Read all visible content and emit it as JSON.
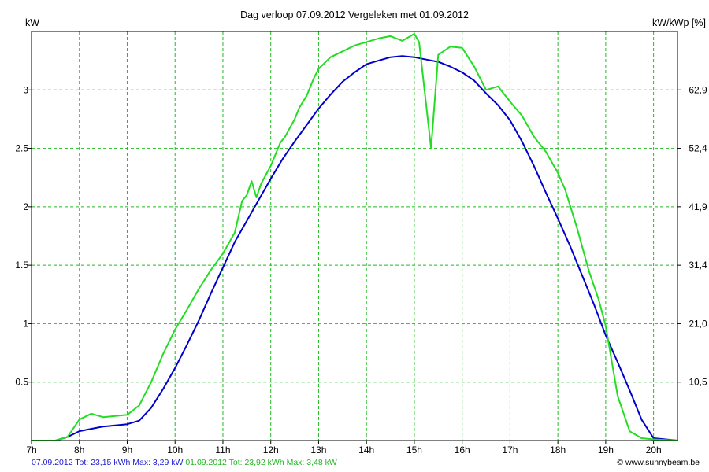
{
  "chart_data": {
    "type": "line",
    "title": "Dag  verloop 07.09.2012   Vergeleken met 01.09.2012",
    "ylabel_left": "kW",
    "ylabel_right": "kW/kWp [%]",
    "xlim": [
      7,
      20.5
    ],
    "ylim": [
      0,
      3.5
    ],
    "x_ticks": [
      7,
      8,
      9,
      10,
      11,
      12,
      13,
      14,
      15,
      16,
      17,
      18,
      19,
      20
    ],
    "x_tick_labels": [
      "7h",
      "8h",
      "9h",
      "10h",
      "11h",
      "12h",
      "13h",
      "14h",
      "15h",
      "16h",
      "17h",
      "18h",
      "19h",
      "20h"
    ],
    "y_ticks_left": [
      0.5,
      1,
      1.5,
      2,
      2.5,
      3
    ],
    "y_tick_labels_left": [
      "0.5",
      "1",
      "1.5",
      "2",
      "2.5",
      "3"
    ],
    "y_ticks_right_at": [
      0.5,
      1,
      1.5,
      2,
      2.5,
      3
    ],
    "y_tick_labels_right": [
      "10,5",
      "21,0",
      "31,4",
      "41,9",
      "52,4",
      "62,9"
    ],
    "grid": true,
    "background_color": "#ffffff",
    "grid_color": "#22bb22",
    "series": [
      {
        "name": "07.09.2012",
        "color": "#0000cc",
        "x": [
          7.0,
          7.5,
          7.75,
          8.0,
          8.25,
          8.5,
          8.75,
          9.0,
          9.25,
          9.5,
          9.75,
          10.0,
          10.25,
          10.5,
          10.75,
          11.0,
          11.25,
          11.5,
          11.75,
          12.0,
          12.25,
          12.5,
          12.75,
          13.0,
          13.25,
          13.5,
          13.75,
          14.0,
          14.25,
          14.5,
          14.75,
          15.0,
          15.25,
          15.5,
          15.75,
          16.0,
          16.25,
          16.5,
          16.75,
          17.0,
          17.25,
          17.5,
          17.75,
          18.0,
          18.25,
          18.5,
          18.75,
          19.0,
          19.25,
          19.5,
          19.75,
          20.0,
          20.5
        ],
        "y": [
          0,
          0,
          0.03,
          0.08,
          0.1,
          0.12,
          0.13,
          0.14,
          0.17,
          0.28,
          0.44,
          0.62,
          0.82,
          1.03,
          1.26,
          1.48,
          1.7,
          1.88,
          2.06,
          2.24,
          2.41,
          2.56,
          2.7,
          2.84,
          2.96,
          3.07,
          3.15,
          3.22,
          3.25,
          3.28,
          3.29,
          3.28,
          3.26,
          3.24,
          3.2,
          3.15,
          3.08,
          2.97,
          2.87,
          2.74,
          2.56,
          2.35,
          2.12,
          1.9,
          1.67,
          1.42,
          1.17,
          0.9,
          0.67,
          0.43,
          0.18,
          0.02,
          0
        ]
      },
      {
        "name": "01.09.2012",
        "color": "#22dd22",
        "x": [
          7.0,
          7.5,
          7.75,
          8.0,
          8.25,
          8.5,
          8.75,
          9.0,
          9.25,
          9.5,
          9.75,
          10.0,
          10.25,
          10.5,
          10.75,
          11.0,
          11.25,
          11.4,
          11.5,
          11.6,
          11.7,
          11.8,
          12.0,
          12.2,
          12.3,
          12.5,
          12.6,
          12.75,
          12.9,
          13.0,
          13.25,
          13.5,
          13.75,
          14.0,
          14.25,
          14.5,
          14.75,
          15.0,
          15.1,
          15.35,
          15.5,
          15.75,
          16.0,
          16.25,
          16.5,
          16.75,
          17.0,
          17.25,
          17.5,
          17.75,
          18.0,
          18.15,
          18.4,
          18.65,
          18.85,
          19.0,
          19.25,
          19.5,
          19.75,
          20.0,
          20.5
        ],
        "y": [
          0,
          0,
          0.03,
          0.18,
          0.23,
          0.2,
          0.21,
          0.22,
          0.3,
          0.5,
          0.74,
          0.95,
          1.12,
          1.3,
          1.46,
          1.6,
          1.78,
          2.05,
          2.1,
          2.22,
          2.08,
          2.2,
          2.35,
          2.55,
          2.6,
          2.75,
          2.85,
          2.95,
          3.1,
          3.18,
          3.28,
          3.33,
          3.38,
          3.41,
          3.44,
          3.46,
          3.42,
          3.48,
          3.41,
          2.5,
          3.3,
          3.37,
          3.36,
          3.2,
          3.0,
          3.03,
          2.9,
          2.78,
          2.6,
          2.47,
          2.29,
          2.15,
          1.82,
          1.45,
          1.21,
          0.98,
          0.38,
          0.08,
          0.02,
          0.01,
          0
        ]
      }
    ]
  },
  "footer": {
    "series1_summary": "07.09.2012 Tot: 23,15 kWh Max: 3,29 kW",
    "series2_summary": "01.09.2012 Tot: 23,92 kWh Max: 3,48 kW",
    "credit": "© www.sunnybeam.be"
  }
}
